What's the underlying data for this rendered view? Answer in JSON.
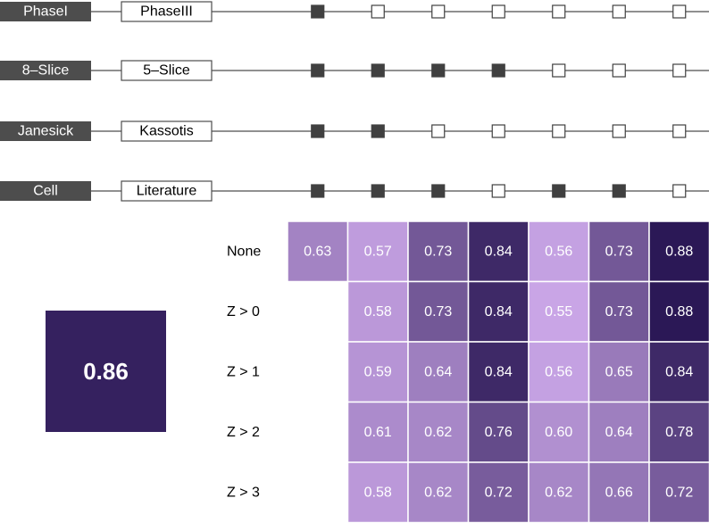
{
  "chart_data": {
    "type": "heatmap",
    "factors": [
      {
        "left_label": "PhaseI",
        "right_label": "PhaseIII",
        "indicators": [
          1,
          0,
          0,
          0,
          0,
          0,
          0
        ]
      },
      {
        "left_label": "8–Slice",
        "right_label": "5–Slice",
        "indicators": [
          1,
          1,
          1,
          1,
          0,
          0,
          0
        ]
      },
      {
        "left_label": "Janesick",
        "right_label": "Kassotis",
        "indicators": [
          1,
          1,
          0,
          0,
          0,
          0,
          0
        ]
      },
      {
        "left_label": "Cell",
        "right_label": "Literature",
        "indicators": [
          1,
          1,
          1,
          0,
          1,
          1,
          0
        ]
      }
    ],
    "rows": [
      "None",
      "Z > 0",
      "Z > 1",
      "Z > 2",
      "Z > 3"
    ],
    "values": [
      [
        0.63,
        0.57,
        0.73,
        0.84,
        0.56,
        0.73,
        0.88
      ],
      [
        null,
        0.58,
        0.73,
        0.84,
        0.55,
        0.73,
        0.88
      ],
      [
        null,
        0.59,
        0.64,
        0.84,
        0.56,
        0.65,
        0.84
      ],
      [
        null,
        0.61,
        0.62,
        0.76,
        0.6,
        0.64,
        0.78
      ],
      [
        null,
        0.58,
        0.62,
        0.72,
        0.62,
        0.66,
        0.72
      ]
    ],
    "highlight_value": "0.86",
    "color_scale": {
      "low_value": 0.55,
      "high_value": 0.88,
      "low_color": "#c9a5e6",
      "high_color": "#2b1856"
    },
    "indicator_filled_color": "#404040",
    "label_box_color": "#4d4d4d"
  }
}
